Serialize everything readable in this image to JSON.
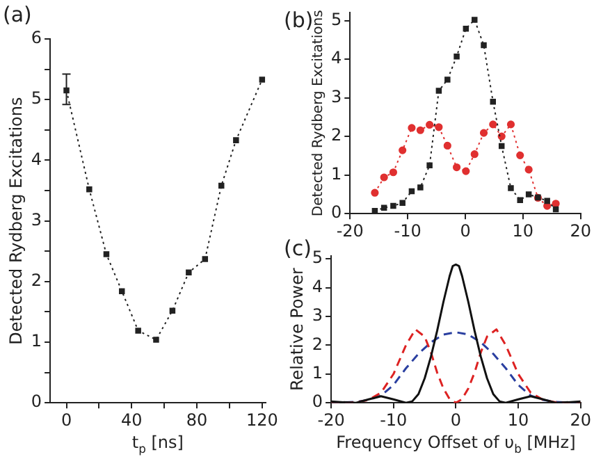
{
  "chart_data": [
    {
      "type": "line",
      "title": "(a)",
      "xlabel": "t$_{p}$ [ns]",
      "ylabel": "Detected Rydberg Excitations",
      "grid": false,
      "legend": false,
      "marker": "square",
      "line_style": "dotted",
      "xlim": [
        -10,
        122
      ],
      "xticks": [
        0,
        {
          "value": 20,
          "label": null
        },
        40,
        {
          "value": 60,
          "label": null
        },
        80,
        {
          "value": 100,
          "label": null
        },
        120
      ],
      "ylim": [
        0,
        6
      ],
      "yticks": [
        0,
        {
          "value": 0.5,
          "label": null
        },
        1,
        {
          "value": 1.5,
          "label": null
        },
        2,
        {
          "value": 2.5,
          "label": null
        },
        3,
        {
          "value": 3.5,
          "label": null
        },
        4,
        {
          "value": 4.5,
          "label": null
        },
        5,
        {
          "value": 5.5,
          "label": null
        },
        6
      ],
      "series": [
        {
          "color": "#222222",
          "x": [
            0,
            14,
            24.5,
            34,
            44,
            55,
            65,
            75,
            85,
            95,
            104,
            120
          ],
          "values": [
            5.15,
            3.52,
            2.45,
            1.84,
            1.19,
            1.04,
            1.52,
            2.15,
            2.37,
            3.58,
            4.33,
            5.33
          ],
          "errors": [
            [
              4.92,
              5.42
            ],
            null,
            null,
            null,
            null,
            null,
            null,
            null,
            null,
            null,
            null,
            null
          ]
        }
      ]
    },
    {
      "type": "line",
      "title": "(b)",
      "ylabel": "Detected Rydberg Excitations",
      "grid": false,
      "legend": false,
      "line_style": "dotted",
      "xlim": [
        -20,
        20
      ],
      "xticks": [
        -20,
        -10,
        0,
        10,
        20
      ],
      "ylim": [
        0,
        5.2
      ],
      "yticks": [
        0,
        1,
        2,
        3,
        4,
        5
      ],
      "series": [
        {
          "color": "#222222",
          "marker": "square",
          "x": [
            -15.7,
            -14.1,
            -12.5,
            -10.9,
            -9.3,
            -7.8,
            -6.2,
            -4.6,
            -3.1,
            -1.5,
            0.1,
            1.6,
            3.2,
            4.8,
            6.3,
            7.9,
            9.5,
            11.0,
            12.6,
            14.2,
            15.7
          ],
          "values": [
            0.07,
            0.15,
            0.2,
            0.28,
            0.58,
            0.68,
            1.25,
            3.18,
            3.47,
            4.07,
            4.79,
            5.02,
            4.36,
            2.9,
            1.75,
            0.66,
            0.35,
            0.5,
            0.42,
            0.33,
            0.11
          ]
        },
        {
          "color": "#e03030",
          "marker": "circle",
          "x": [
            -15.7,
            -14.1,
            -12.5,
            -10.9,
            -9.3,
            -7.8,
            -6.2,
            -4.6,
            -3.1,
            -1.5,
            0.1,
            1.6,
            3.2,
            4.8,
            6.3,
            7.9,
            9.5,
            11.0,
            12.6,
            14.2,
            15.7
          ],
          "values": [
            0.54,
            0.94,
            1.07,
            1.64,
            2.22,
            2.16,
            2.3,
            2.24,
            1.76,
            1.2,
            1.1,
            1.54,
            2.09,
            2.31,
            2.0,
            2.31,
            1.51,
            1.14,
            0.41,
            0.2,
            0.26
          ]
        }
      ]
    },
    {
      "type": "line",
      "title": "(c)",
      "xlabel": "Frequency Offset of υ$_{b}$ [MHz]",
      "ylabel": "Relative Power",
      "grid": false,
      "legend": false,
      "marker": "none",
      "xlim": [
        -20,
        20
      ],
      "xticks": [
        -20,
        -10,
        0,
        10,
        20
      ],
      "ylim": [
        0,
        5.1
      ],
      "yticks": [
        0,
        1,
        2,
        3,
        4,
        5
      ],
      "series": [
        {
          "color": "#111111",
          "line_style": "solid",
          "x": [
            -20,
            -18,
            -16,
            -14,
            -12,
            -10,
            -8,
            -7,
            -6,
            -5,
            -4,
            -3,
            -2,
            -1,
            -0.5,
            0,
            0.5,
            1,
            2,
            3,
            4,
            5,
            6,
            7,
            8,
            10,
            12,
            14,
            16,
            18,
            20
          ],
          "values": [
            0.05,
            0.02,
            0,
            0.12,
            0.23,
            0.12,
            0,
            0.05,
            0.3,
            0.85,
            1.6,
            2.5,
            3.5,
            4.4,
            4.75,
            4.8,
            4.75,
            4.4,
            3.5,
            2.5,
            1.6,
            0.85,
            0.3,
            0.05,
            0,
            0.12,
            0.23,
            0.12,
            0,
            0.02,
            0.05
          ]
        },
        {
          "color": "#dd2222",
          "line_style": "dashed",
          "x": [
            -20,
            -16,
            -14,
            -12,
            -10,
            -8,
            -6.5,
            -5,
            -4,
            -3,
            -2,
            -1,
            0,
            1,
            2,
            3,
            4,
            5,
            6.5,
            8,
            10,
            12,
            14,
            16,
            20
          ],
          "values": [
            0,
            0.02,
            0.1,
            0.35,
            1.0,
            2.0,
            2.55,
            2.3,
            1.75,
            1.05,
            0.5,
            0.13,
            0,
            0.13,
            0.5,
            1.05,
            1.75,
            2.3,
            2.55,
            2.0,
            1.0,
            0.35,
            0.1,
            0.02,
            0
          ]
        },
        {
          "color": "#2a3fa0",
          "line_style": "dashed",
          "x": [
            -20,
            -16,
            -14,
            -12,
            -10,
            -8,
            -6,
            -4,
            -2,
            0,
            2,
            4,
            6,
            8,
            10,
            12,
            14,
            16,
            20
          ],
          "values": [
            0,
            0.03,
            0.1,
            0.25,
            0.62,
            1.2,
            1.7,
            2.1,
            2.37,
            2.45,
            2.37,
            2.1,
            1.7,
            1.2,
            0.62,
            0.25,
            0.1,
            0.03,
            0
          ]
        }
      ]
    }
  ]
}
